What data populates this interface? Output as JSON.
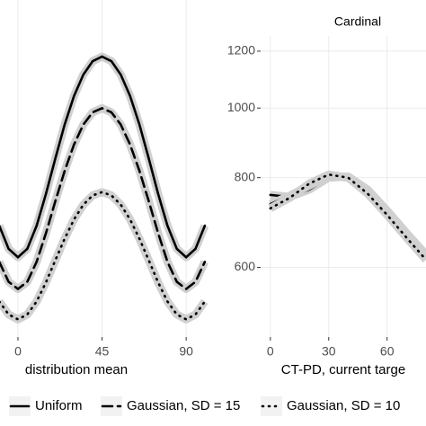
{
  "chart_data": [
    {
      "type": "line",
      "x_label": "distribution mean",
      "x": [
        -10,
        -5,
        0,
        5,
        10,
        15,
        20,
        25,
        30,
        35,
        40,
        45,
        50,
        55,
        60,
        65,
        70,
        75,
        80,
        85,
        90,
        95,
        100
      ],
      "series": [
        {
          "name": "Uniform",
          "color": "#000000",
          "dash": "solid",
          "values": [
            686,
            637,
            620,
            637,
            686,
            760,
            851,
            949,
            1040,
            1114,
            1163,
            1180,
            1163,
            1114,
            1040,
            949,
            851,
            760,
            686,
            637,
            620,
            637,
            686
          ]
        },
        {
          "name": "Gaussian, SD = 15",
          "color": "#000000",
          "dash": "dashed",
          "values": [
            611,
            573,
            560,
            573,
            611,
            670,
            742,
            818,
            890,
            949,
            987,
            1000,
            987,
            949,
            890,
            818,
            742,
            670,
            611,
            573,
            560,
            573,
            611
          ]
        },
        {
          "name": "Gaussian, SD = 10",
          "color": "#000000",
          "dash": "dotted",
          "values": [
            538,
            516,
            508,
            516,
            538,
            572,
            614,
            658,
            700,
            734,
            756,
            764,
            756,
            734,
            700,
            658,
            614,
            572,
            538,
            516,
            508,
            516,
            538
          ]
        }
      ],
      "xlim": [
        -9.6,
        101
      ],
      "xticks": [
        0,
        45,
        90
      ],
      "ylim": [
        480,
        1415
      ],
      "log_y": true,
      "grid": true
    },
    {
      "type": "line",
      "title": "Cardinal",
      "x_label": "CT-PD, current targe",
      "x": [
        0,
        10,
        20,
        30,
        40,
        50,
        60,
        70,
        80
      ],
      "series": [
        {
          "name": "Uniform",
          "color": "#000000",
          "dash": "solid",
          "values": [
            757,
            752,
            770,
            800,
            803,
            770,
            720,
            670,
            625
          ]
        },
        {
          "name": "Gaussian, SD = 15",
          "color": "#000000",
          "dash": "dashed",
          "values": [
            735,
            755,
            780,
            805,
            800,
            765,
            715,
            665,
            620
          ]
        },
        {
          "name": "Gaussian, SD = 10",
          "color": "#000000",
          "dash": "dotted",
          "values": [
            725,
            750,
            785,
            808,
            800,
            760,
            710,
            660,
            615
          ]
        }
      ],
      "xlim": [
        -5,
        80
      ],
      "xticks": [
        0,
        30,
        60
      ],
      "ylim": [
        480,
        1260
      ],
      "yticks": [
        600,
        800,
        1000,
        1200
      ],
      "log_y": true,
      "grid": true
    }
  ]
}
